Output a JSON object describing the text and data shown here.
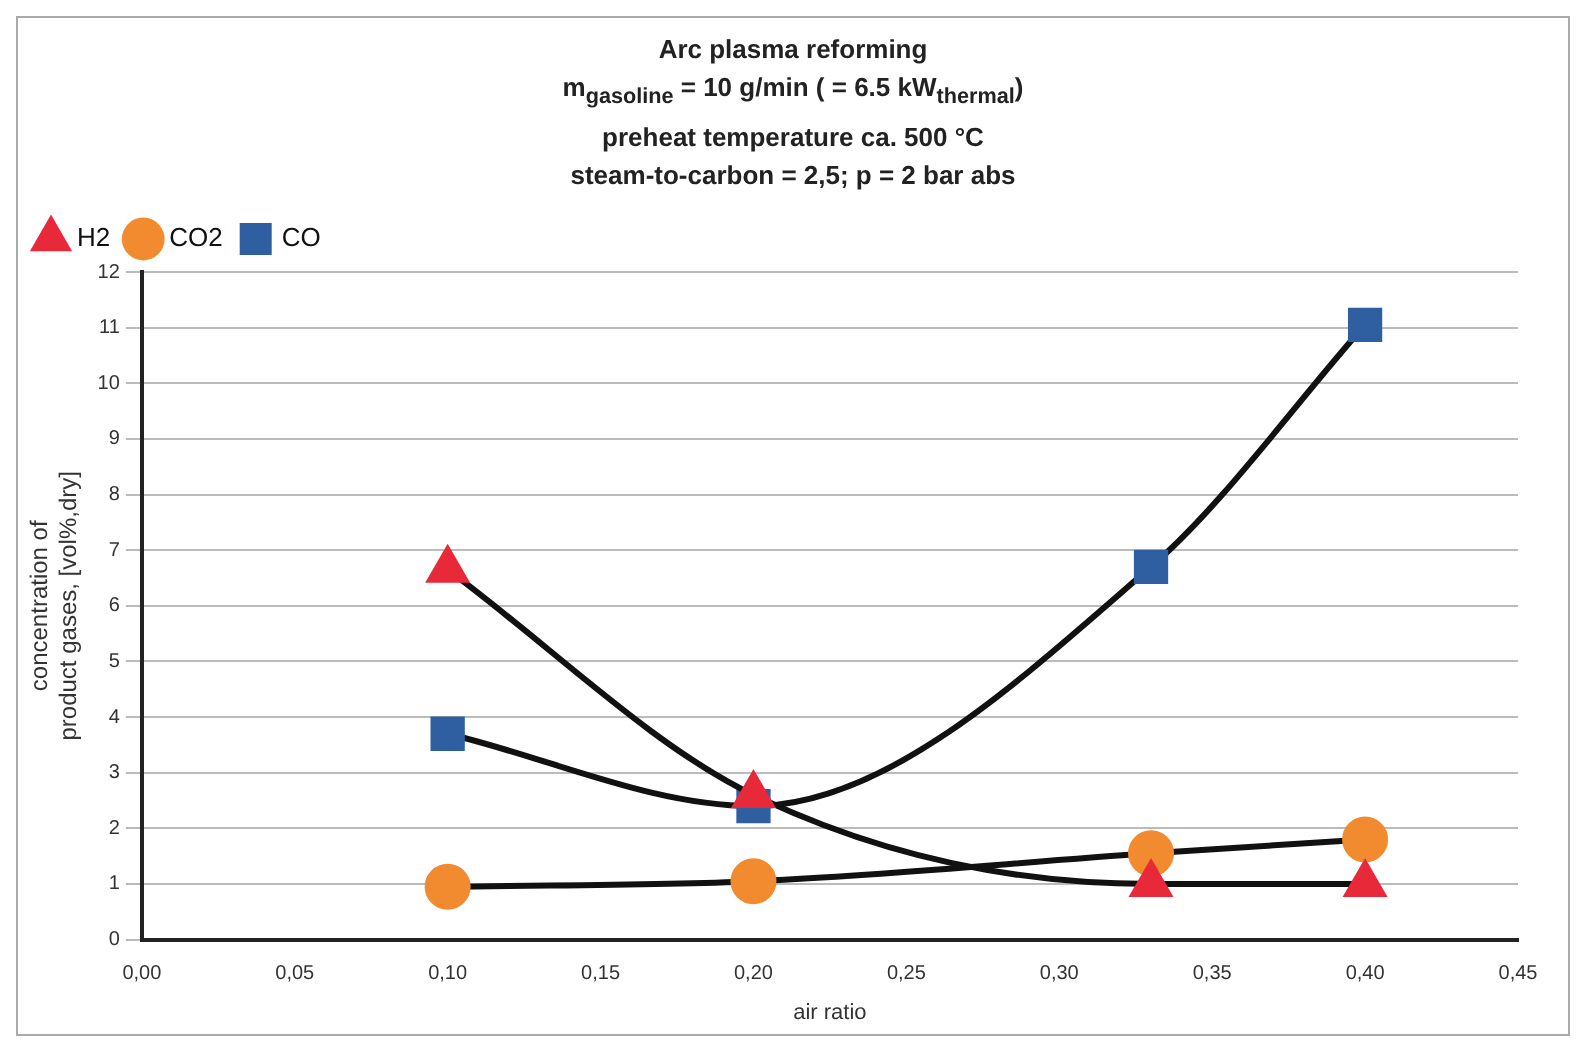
{
  "chart_data": {
    "type": "line",
    "title": "Arc plasma reforming\nm$_{gasoline}$ = 10 g/min ( = 6.5 kW$_{thermal}$)\npreheat temperature ca. 500 °C\nsteam-to-carbon = 2,5; p = 2 bar abs",
    "xlabel": "air ratio",
    "ylabel": "concentration of\nproduct gases, [vol%,dry]",
    "x": [
      0.1,
      0.2,
      0.33,
      0.4
    ],
    "series": [
      {
        "name": "H2",
        "color": "#e8293a",
        "marker": "triangle",
        "values": [
          6.65,
          2.6,
          1.0,
          1.0
        ]
      },
      {
        "name": "CO2",
        "color": "#f28a30",
        "marker": "circle",
        "values": [
          0.95,
          1.05,
          1.55,
          1.8
        ]
      },
      {
        "name": "CO",
        "color": "#2f5fa0",
        "marker": "square",
        "values": [
          3.7,
          2.4,
          6.7,
          11.05
        ]
      }
    ],
    "xlim": [
      0,
      0.45
    ],
    "xticks": [
      {
        "value": 0,
        "label": "0,00"
      },
      {
        "value": 0.05,
        "label": "0,05"
      },
      {
        "value": 0.1,
        "label": "0,10"
      },
      {
        "value": 0.15,
        "label": "0,15"
      },
      {
        "value": 0.2,
        "label": "0,20"
      },
      {
        "value": 0.25,
        "label": "0,25"
      },
      {
        "value": 0.3,
        "label": "0,30"
      },
      {
        "value": 0.35,
        "label": "0,35"
      },
      {
        "value": 0.4,
        "label": "0,40"
      },
      {
        "value": 0.45,
        "label": "0,45"
      }
    ],
    "ylim": [
      0,
      12
    ],
    "yticks": [
      0,
      1,
      2,
      3,
      4,
      5,
      6,
      7,
      8,
      9,
      10,
      11,
      12
    ],
    "grid": "y",
    "legend": "top left"
  }
}
